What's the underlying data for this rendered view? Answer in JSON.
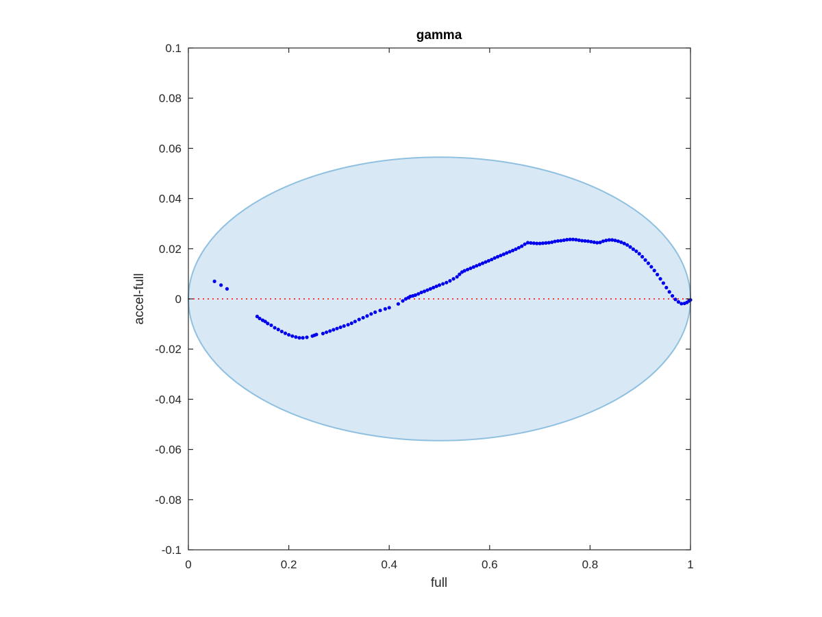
{
  "chart_data": {
    "type": "scatter",
    "title": "gamma",
    "xlabel": "full",
    "ylabel": "accel-full",
    "xlim": [
      0,
      1
    ],
    "ylim": [
      -0.1,
      0.1
    ],
    "x_ticks": [
      0,
      0.2,
      0.4,
      0.6,
      0.8,
      1
    ],
    "x_tick_labels": [
      "0",
      "0.2",
      "0.4",
      "0.6",
      "0.8",
      "1"
    ],
    "y_ticks": [
      -0.1,
      -0.08,
      -0.06,
      -0.04,
      -0.02,
      0,
      0.02,
      0.04,
      0.06,
      0.08,
      0.1
    ],
    "y_tick_labels": [
      "-0.1",
      "-0.08",
      "-0.06",
      "-0.04",
      "-0.02",
      "0",
      "0.02",
      "0.04",
      "0.06",
      "0.08",
      "0.1"
    ],
    "grid": false,
    "colors": {
      "points": "#0000ee",
      "ellipse_fill": "#d9e8f5",
      "ellipse_edge": "#8fc0e0",
      "zero_line": "#ff3333",
      "axes": "#262626"
    },
    "ellipse": {
      "center_x": 0.5,
      "center_y": 0,
      "semi_axis_x": 0.5,
      "semi_axis_y": 0.0565
    },
    "reference_line": {
      "y": 0,
      "style": "dotted"
    },
    "series": [
      {
        "x": [
          0.052,
          0.065,
          0.077,
          0.137,
          0.142,
          0.148,
          0.153,
          0.158,
          0.165,
          0.172,
          0.179,
          0.186,
          0.193,
          0.2,
          0.207,
          0.214,
          0.221,
          0.228,
          0.236,
          0.247,
          0.251,
          0.255,
          0.268,
          0.275,
          0.282,
          0.289,
          0.296,
          0.303,
          0.31,
          0.318,
          0.325,
          0.332,
          0.34,
          0.348,
          0.356,
          0.364,
          0.372,
          0.382,
          0.392,
          0.4,
          0.418,
          0.427,
          0.433,
          0.438,
          0.442,
          0.447,
          0.452,
          0.458,
          0.464,
          0.47,
          0.476,
          0.482,
          0.488,
          0.494,
          0.5,
          0.507,
          0.514,
          0.521,
          0.528,
          0.535,
          0.54,
          0.545,
          0.55,
          0.556,
          0.562,
          0.568,
          0.574,
          0.58,
          0.586,
          0.592,
          0.598,
          0.604,
          0.61,
          0.616,
          0.622,
          0.628,
          0.634,
          0.64,
          0.646,
          0.652,
          0.658,
          0.664,
          0.67,
          0.676,
          0.682,
          0.688,
          0.694,
          0.7,
          0.706,
          0.712,
          0.718,
          0.724,
          0.73,
          0.736,
          0.742,
          0.748,
          0.754,
          0.76,
          0.766,
          0.772,
          0.778,
          0.784,
          0.79,
          0.796,
          0.802,
          0.808,
          0.814,
          0.82,
          0.826,
          0.832,
          0.838,
          0.844,
          0.85,
          0.856,
          0.862,
          0.868,
          0.874,
          0.88,
          0.886,
          0.892,
          0.898,
          0.904,
          0.91,
          0.916,
          0.922,
          0.928,
          0.934,
          0.94,
          0.946,
          0.952,
          0.958,
          0.964,
          0.97,
          0.976,
          0.982,
          0.988,
          0.993,
          0.997,
          1.0
        ],
        "y": [
          0.007,
          0.0055,
          0.004,
          -0.007,
          -0.0078,
          -0.0085,
          -0.009,
          -0.0098,
          -0.0105,
          -0.0115,
          -0.0122,
          -0.013,
          -0.0137,
          -0.0143,
          -0.0148,
          -0.0152,
          -0.0155,
          -0.0155,
          -0.0153,
          -0.0148,
          -0.0145,
          -0.0142,
          -0.0138,
          -0.0133,
          -0.0128,
          -0.0123,
          -0.0118,
          -0.0113,
          -0.0108,
          -0.0103,
          -0.0097,
          -0.009,
          -0.0082,
          -0.0075,
          -0.0068,
          -0.006,
          -0.0053,
          -0.0046,
          -0.004,
          -0.0035,
          -0.002,
          -0.0008,
          0.0,
          0.0005,
          0.001,
          0.0012,
          0.0015,
          0.002,
          0.0026,
          0.003,
          0.0035,
          0.004,
          0.0045,
          0.005,
          0.0055,
          0.006,
          0.0065,
          0.0072,
          0.008,
          0.0088,
          0.0098,
          0.0107,
          0.0112,
          0.0117,
          0.0122,
          0.0127,
          0.0132,
          0.0137,
          0.0142,
          0.0147,
          0.0152,
          0.0157,
          0.0163,
          0.0168,
          0.0173,
          0.0178,
          0.0183,
          0.0188,
          0.0193,
          0.0198,
          0.0204,
          0.021,
          0.0218,
          0.0224,
          0.0223,
          0.0222,
          0.0221,
          0.0221,
          0.0222,
          0.0223,
          0.0224,
          0.0226,
          0.0229,
          0.0231,
          0.0232,
          0.0234,
          0.0236,
          0.0237,
          0.0237,
          0.0236,
          0.0234,
          0.0232,
          0.0231,
          0.023,
          0.0228,
          0.0226,
          0.0224,
          0.0225,
          0.023,
          0.0233,
          0.0235,
          0.0235,
          0.0233,
          0.023,
          0.0226,
          0.0221,
          0.0215,
          0.0207,
          0.0198,
          0.019,
          0.018,
          0.0168,
          0.0155,
          0.0142,
          0.0128,
          0.0113,
          0.0097,
          0.008,
          0.0063,
          0.0045,
          0.0028,
          0.0012,
          -0.0002,
          -0.0012,
          -0.0019,
          -0.0018,
          -0.0014,
          -0.0008,
          -0.0004
        ]
      }
    ]
  }
}
